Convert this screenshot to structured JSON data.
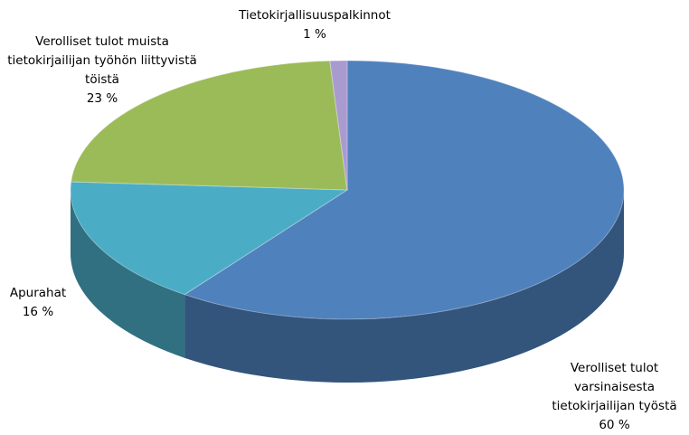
{
  "chart_data": {
    "type": "pie",
    "categories": [
      "Verolliset tulot varsinaisesta tietokirjailijan työstä",
      "Apurahat",
      "Verolliset tulot muista tietokirjailijan työhön liittyvistä töistä",
      "Tietokirjallisuuspalkinnot"
    ],
    "values": [
      60,
      16,
      23,
      1
    ],
    "value_labels": [
      "60 %",
      "16 %",
      "23 %",
      "1 %"
    ],
    "colors": [
      "#4f81bd",
      "#4bacc6",
      "#9bbb59",
      "#a99bd0"
    ]
  }
}
